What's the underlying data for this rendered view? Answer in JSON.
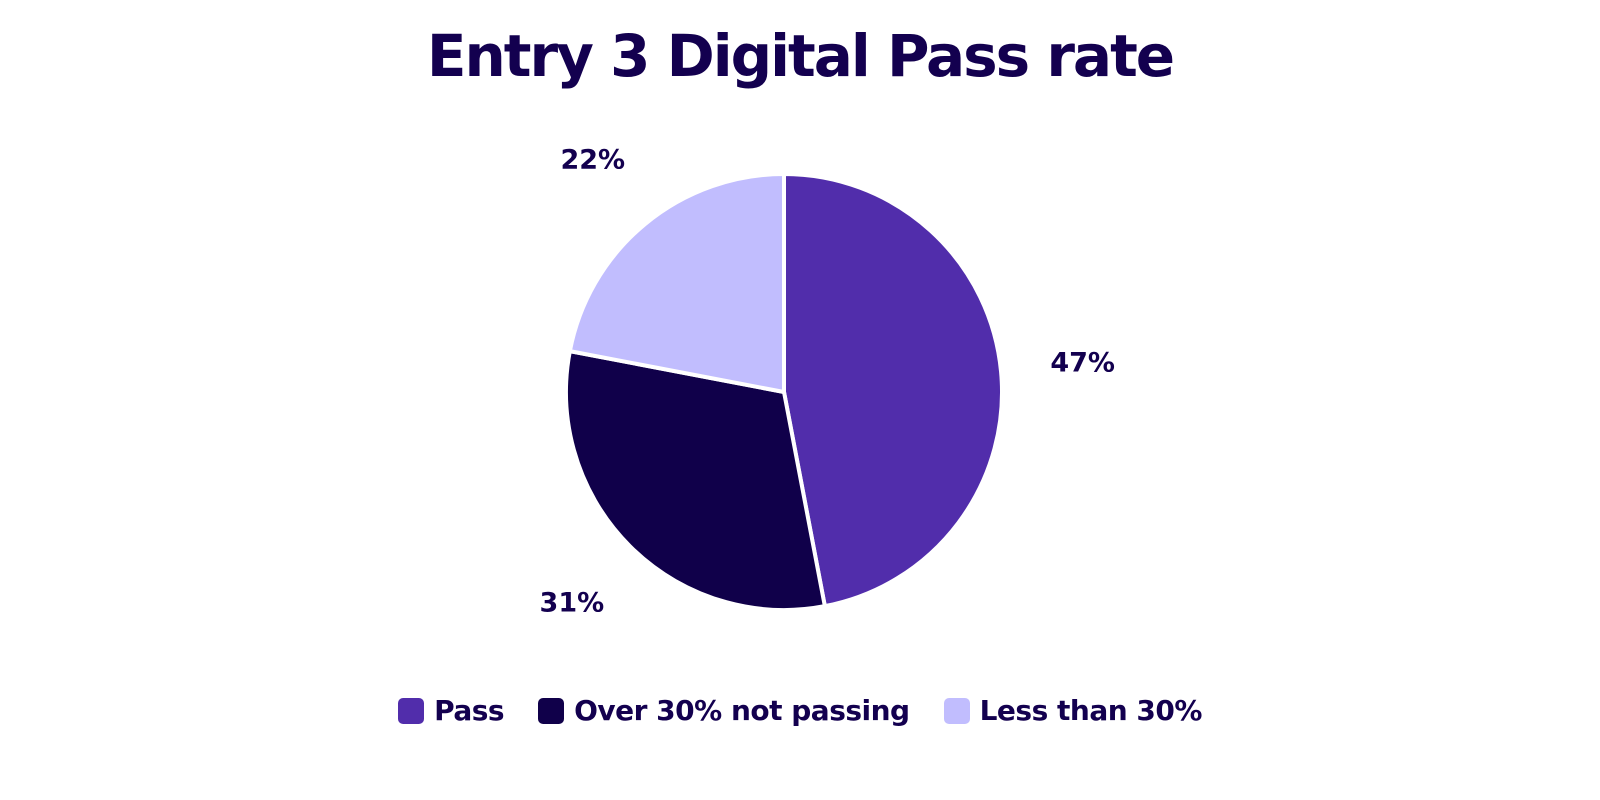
{
  "chart_data": {
    "type": "pie",
    "title": "Entry 3 Digital Pass rate",
    "categories": [
      "Pass",
      "Over 30% not passing",
      "Less than 30%"
    ],
    "values": [
      47,
      31,
      22
    ],
    "labels": [
      "47%",
      "31%",
      "22%"
    ],
    "colors": [
      "#512dab",
      "#10004a",
      "#c1bdfe"
    ],
    "legend_position": "bottom",
    "start_angle": "top",
    "direction": "clockwise"
  }
}
